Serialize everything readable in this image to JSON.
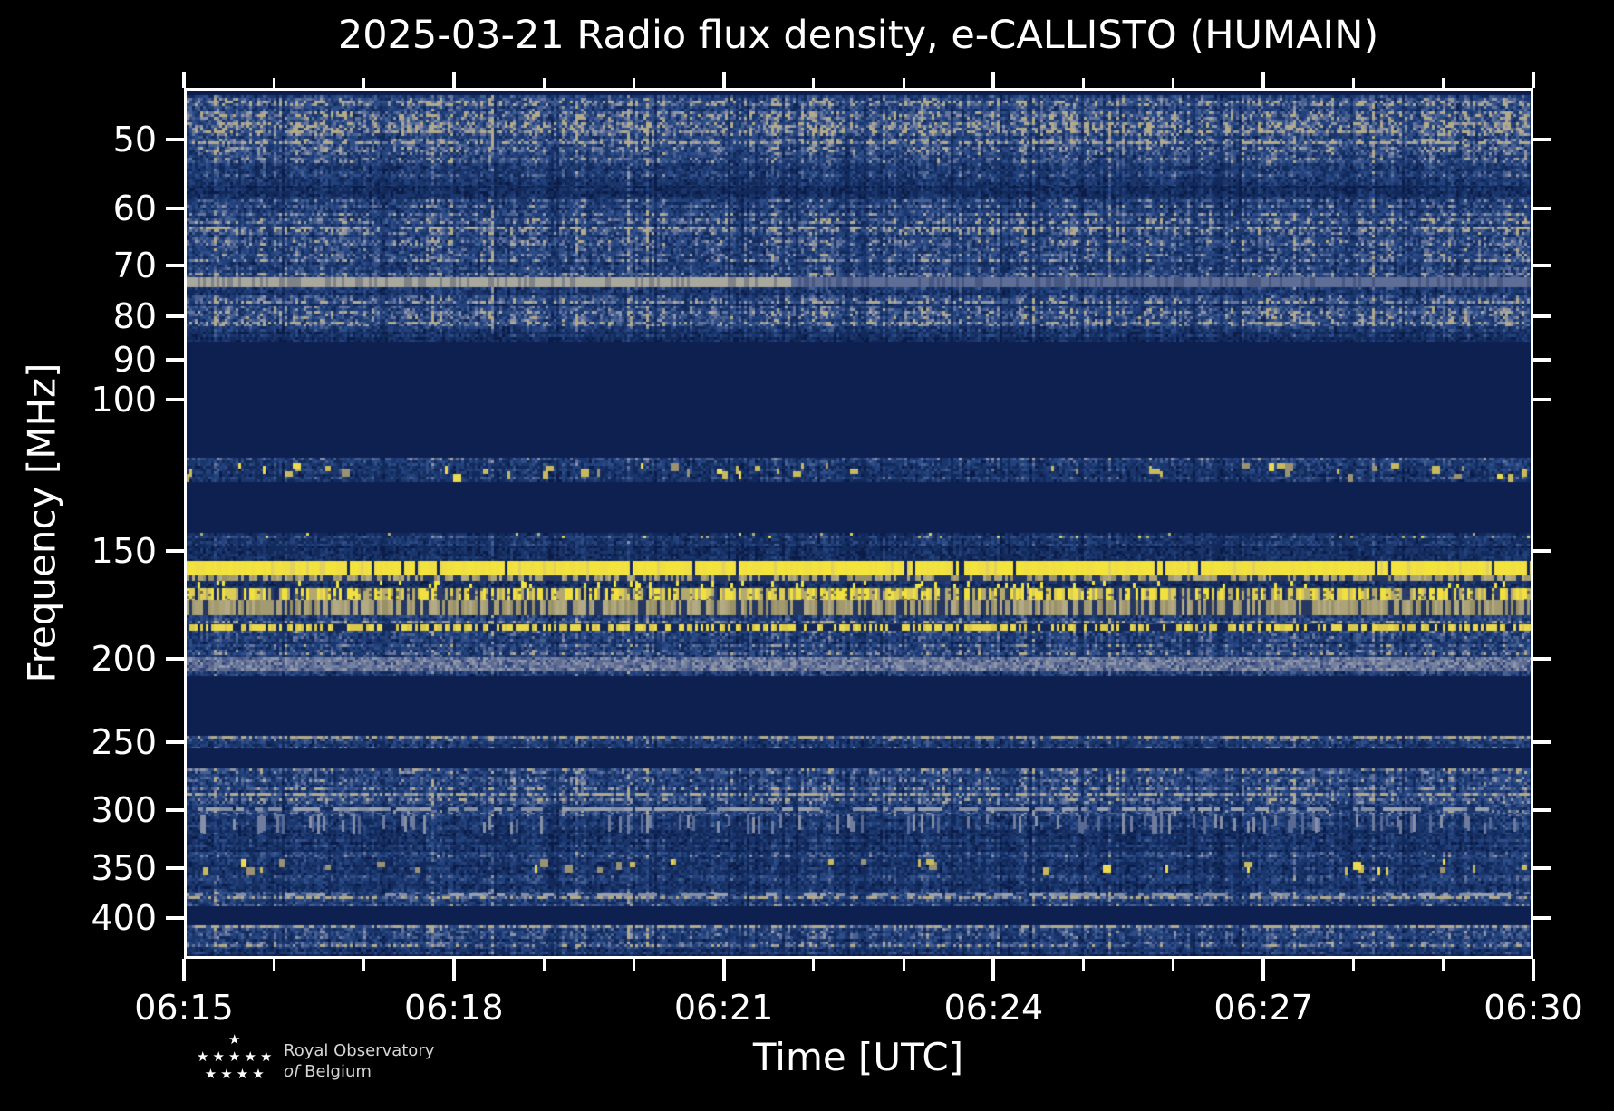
{
  "title": "2025-03-21 Radio flux density, e-CALLISTO (HUMAIN)",
  "x_axis": {
    "label": "Time [UTC]",
    "tick_labels": [
      "06:15",
      "06:18",
      "06:21",
      "06:24",
      "06:27",
      "06:30"
    ],
    "total_minutes": 15,
    "major_step_minutes": 3
  },
  "y_axis": {
    "label": "Frequency [MHz]",
    "tick_labels": [
      50,
      60,
      70,
      80,
      90,
      100,
      150,
      200,
      250,
      300,
      350,
      400
    ],
    "scale": "log"
  },
  "logo": {
    "line1": "Royal Observatory",
    "line2_italic": "of",
    "line2": "Belgium",
    "star_count": 10
  },
  "chart_data": {
    "type": "heatmap",
    "title": "2025-03-21 Radio flux density, e-CALLISTO (HUMAIN)",
    "date": "2025-03-21",
    "instrument": "e-CALLISTO",
    "station": "HUMAIN",
    "xlabel": "Time [UTC]",
    "ylabel": "Frequency [MHz]",
    "x_range": [
      "06:15",
      "06:30"
    ],
    "x_tick_interval_min": 3,
    "x_minor_tick_interval_min": 1,
    "y_scale": "log",
    "y_range_mhz": [
      43.5,
      446
    ],
    "y_ticks_mhz": [
      50,
      60,
      70,
      80,
      90,
      100,
      150,
      200,
      250,
      300,
      350,
      400
    ],
    "background_color": "#000000",
    "frame_color": "#ffffff",
    "colormap": {
      "low": "#0d2051",
      "mid": "#23427d",
      "high": "#f3e33d"
    },
    "features": [
      "Strong continuous RFI band ~154-160 MHz (bright yellow) persisting 06:15-06:30",
      "Broadcast/RFI complex ~160-178 MHz: tan bands with bright yellow vertical bursts",
      "Intermittent narrowband RFI line ~182-185 MHz (broken yellow dashes)",
      "Aeronautical-band bursts ~119-125 MHz (scattered yellow/tan blips)",
      "Faint horizontal interference line ~72-74 MHz, brighter section ending near 06:21.7",
      "Quiet blanked FM band ~86-117 MHz rendered flat dark blue",
      "Quiet flat bands ~125-143 MHz, ~209-246 MHz, ~254-268 MHz, ~387-408 MHz",
      "Enhanced light gray-blue band ~199-207 MHz",
      "Gray dashed RFI near 300 MHz and tan bursts near 350 MHz",
      "Fine blue background noise with vertical time striations throughout"
    ],
    "bands": [
      {
        "f": [
          43.5,
          44.3
        ],
        "kind": "flat",
        "color": "#0d1e4e"
      },
      {
        "f": [
          44.3,
          49.5
        ],
        "kind": "noise",
        "level": 0.3,
        "rowline": 0.1
      },
      {
        "f": [
          49.5,
          56.5
        ],
        "kind": "noise",
        "level": 0.22,
        "rowline": 0.05
      },
      {
        "f": [
          56.5,
          58.6
        ],
        "kind": "noise",
        "level": 0.13,
        "rowline": 0.0
      },
      {
        "f": [
          58.6,
          72.2
        ],
        "kind": "noise",
        "level": 0.24,
        "rowline": 0.06
      },
      {
        "f": [
          72.2,
          74.2
        ],
        "kind": "hline",
        "bright_color": "#a9a89e",
        "dim_color": "#5e6e96",
        "x_end": 0.45
      },
      {
        "f": [
          74.2,
          78.4
        ],
        "kind": "noise",
        "level": 0.2,
        "rowline": 0.05
      },
      {
        "f": [
          78.4,
          82.3
        ],
        "kind": "noise",
        "level": 0.28,
        "rowline": 0.1
      },
      {
        "f": [
          82.3,
          85.7
        ],
        "kind": "noise",
        "level": 0.13,
        "rowline": 0.0
      },
      {
        "f": [
          85.7,
          116.9
        ],
        "kind": "flat",
        "color": "#0d2050"
      },
      {
        "f": [
          116.9,
          118.6
        ],
        "kind": "noise",
        "level": 0.2,
        "rowline": 0.0
      },
      {
        "f": [
          118.6,
          124.7
        ],
        "kind": "blobs",
        "level": 0.15,
        "density": 0.1
      },
      {
        "f": [
          124.7,
          142.8
        ],
        "kind": "flat",
        "color": "#0d2050"
      },
      {
        "f": [
          142.8,
          147.7
        ],
        "kind": "specks",
        "level": 0.15,
        "density": 0.06
      },
      {
        "f": [
          147.7,
          154.2
        ],
        "kind": "noise",
        "level": 0.1,
        "rowline": 0.03
      },
      {
        "f": [
          154.2,
          160.2
        ],
        "kind": "rfi",
        "color": "#f3e33d",
        "gap": 0.035
      },
      {
        "f": [
          160.2,
          162.6
        ],
        "kind": "hatch",
        "density": 0.45
      },
      {
        "f": [
          162.6,
          165.7
        ],
        "kind": "streaks",
        "level": 0.1,
        "streak_color": "#f3e33d",
        "density": 0.1
      },
      {
        "f": [
          165.7,
          171.0
        ],
        "kind": "mixed"
      },
      {
        "f": [
          171.0,
          178.0
        ],
        "kind": "hatch",
        "density": 0.3
      },
      {
        "f": [
          178.0,
          182.3
        ],
        "kind": "noise",
        "level": 0.15,
        "rowline": 0.04
      },
      {
        "f": [
          182.3,
          185.4
        ],
        "kind": "dots",
        "on_color": "#ead94e",
        "duty": 0.55
      },
      {
        "f": [
          185.4,
          199.1
        ],
        "kind": "noise",
        "level": 0.22,
        "rowline": 0.05
      },
      {
        "f": [
          199.1,
          206.9
        ],
        "kind": "gband"
      },
      {
        "f": [
          206.9,
          209.4
        ],
        "kind": "noise",
        "level": 0.15,
        "rowline": 0.0
      },
      {
        "f": [
          209.4,
          246.0
        ],
        "kind": "flat",
        "color": "#0d2050"
      },
      {
        "f": [
          246.0,
          253.8
        ],
        "kind": "noise",
        "level": 0.22,
        "rowline": 0.05
      },
      {
        "f": [
          253.8,
          268.3
        ],
        "kind": "flat",
        "color": "#0d2050"
      },
      {
        "f": [
          268.3,
          295.6
        ],
        "kind": "noise",
        "level": 0.24,
        "rowline": 0.06
      },
      {
        "f": [
          295.6,
          302.8
        ],
        "kind": "gdash",
        "level": 0.2,
        "density": 0.5
      },
      {
        "f": [
          302.8,
          319.3
        ],
        "kind": "vstreaks",
        "level": 0.16,
        "density": 0.22
      },
      {
        "f": [
          319.3,
          335.1
        ],
        "kind": "noise",
        "level": 0.14,
        "rowline": 0.03
      },
      {
        "f": [
          335.1,
          341.6
        ],
        "kind": "noise",
        "level": 0.22,
        "rowline": 0.08
      },
      {
        "f": [
          341.6,
          356.7
        ],
        "kind": "blobs",
        "level": 0.16,
        "density": 0.07
      },
      {
        "f": [
          356.7,
          372.5
        ],
        "kind": "noise",
        "level": 0.16,
        "rowline": 0.04
      },
      {
        "f": [
          372.5,
          377.5
        ],
        "kind": "gdash",
        "level": 0.18,
        "density": 0.35
      },
      {
        "f": [
          377.5,
          387.2
        ],
        "kind": "noise",
        "level": 0.22,
        "rowline": 0.05
      },
      {
        "f": [
          387.2,
          408.1
        ],
        "kind": "flat",
        "color": "#0d2050"
      },
      {
        "f": [
          408.1,
          434.1
        ],
        "kind": "noise",
        "level": 0.24,
        "rowline": 0.06
      },
      {
        "f": [
          434.1,
          446.0
        ],
        "kind": "noise",
        "level": 0.12,
        "rowline": 0.0
      }
    ]
  }
}
